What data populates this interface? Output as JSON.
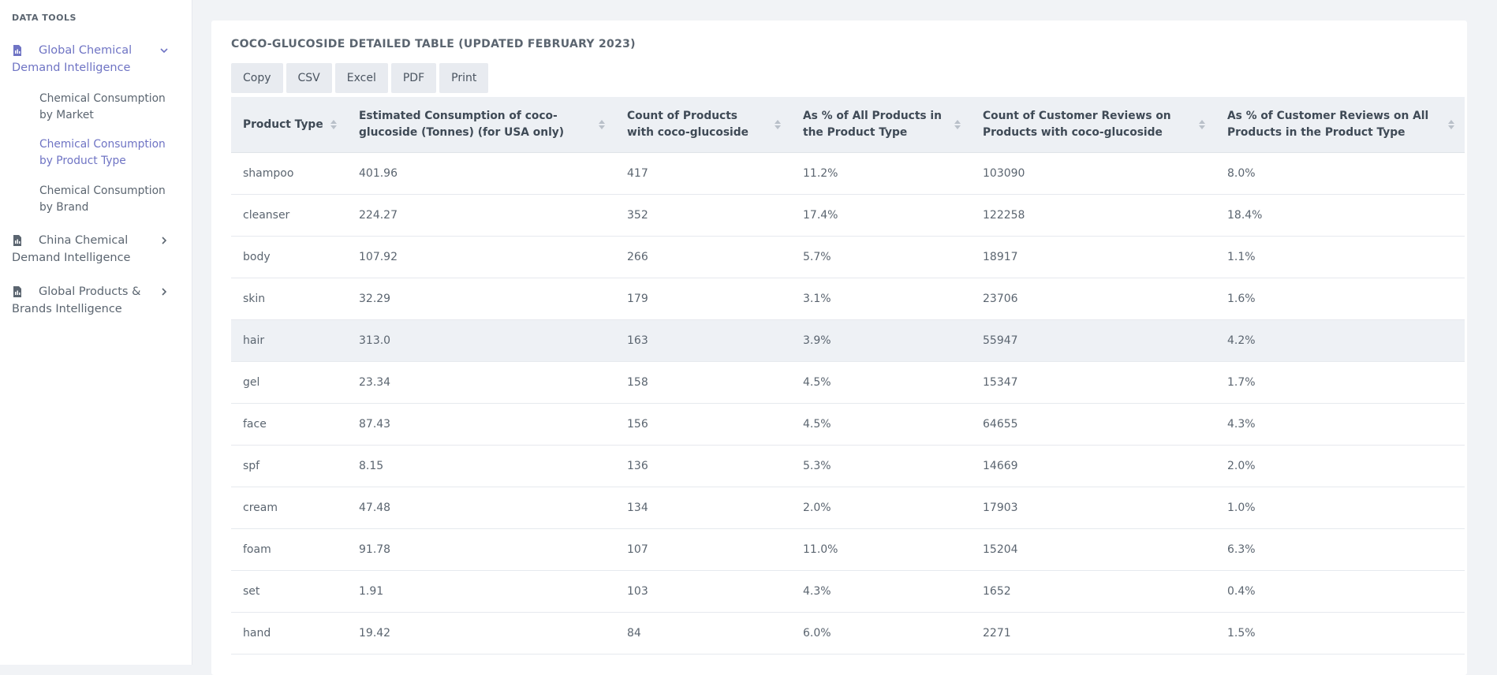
{
  "sidebar": {
    "heading": "DATA TOOLS",
    "groups": [
      {
        "label": "Global Chemical Demand Intelligence",
        "expanded": true,
        "items": [
          {
            "label": "Chemical Consumption by Market"
          },
          {
            "label": "Chemical Consumption by Product Type"
          },
          {
            "label": "Chemical Consumption by Brand"
          }
        ]
      },
      {
        "label": "China Chemical Demand Intelligence",
        "expanded": false
      },
      {
        "label": "Global Products & Brands Intelligence",
        "expanded": false
      }
    ]
  },
  "main": {
    "title": "COCO-GLUCOSIDE DETAILED TABLE (UPDATED FEBRUARY 2023)",
    "buttons": [
      "Copy",
      "CSV",
      "Excel",
      "PDF",
      "Print"
    ],
    "columns": [
      "Product Type",
      "Estimated Consumption of coco-glucoside (Tonnes) (for USA only)",
      "Count of Products with coco-glucoside",
      "As % of All Products in the Product Type",
      "Count of Customer Reviews on Products with coco-glucoside",
      "As % of Customer Reviews on All Products in the Product Type"
    ],
    "rows": [
      [
        "shampoo",
        "401.96",
        "417",
        "11.2%",
        "103090",
        "8.0%"
      ],
      [
        "cleanser",
        "224.27",
        "352",
        "17.4%",
        "122258",
        "18.4%"
      ],
      [
        "body",
        "107.92",
        "266",
        "5.7%",
        "18917",
        "1.1%"
      ],
      [
        "skin",
        "32.29",
        "179",
        "3.1%",
        "23706",
        "1.6%"
      ],
      [
        "hair",
        "313.0",
        "163",
        "3.9%",
        "55947",
        "4.2%"
      ],
      [
        "gel",
        "23.34",
        "158",
        "4.5%",
        "15347",
        "1.7%"
      ],
      [
        "face",
        "87.43",
        "156",
        "4.5%",
        "64655",
        "4.3%"
      ],
      [
        "spf",
        "8.15",
        "136",
        "5.3%",
        "14669",
        "2.0%"
      ],
      [
        "cream",
        "47.48",
        "134",
        "2.0%",
        "17903",
        "1.0%"
      ],
      [
        "foam",
        "91.78",
        "107",
        "11.0%",
        "15204",
        "6.3%"
      ],
      [
        "set",
        "1.91",
        "103",
        "4.3%",
        "1652",
        "0.4%"
      ],
      [
        "hand",
        "19.42",
        "84",
        "6.0%",
        "2271",
        "1.5%"
      ]
    ]
  },
  "colors": {
    "accent": "#6f74c4",
    "background": "#f1f3f6",
    "header_bg": "#edf0f4",
    "hover_row": "#eef1f5"
  }
}
